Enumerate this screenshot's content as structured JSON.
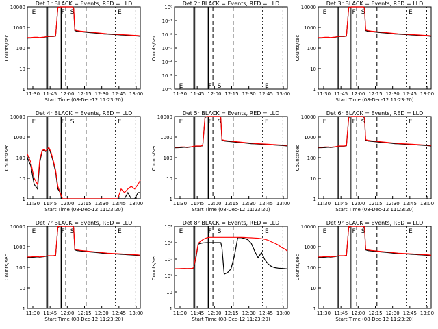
{
  "chart_data": [
    {
      "type": "line",
      "title": "Det 1r BLACK = Events, RED = LLD",
      "xlabel": "Start Time (08-Dec-12 11:23:20)",
      "ylabel": "Counts/sec",
      "yscale": "log",
      "ylim": [
        1,
        10000
      ],
      "ytick_labels": [
        "1",
        "10",
        "100",
        "1000",
        "10000"
      ],
      "x_tick_labels": [
        "11:30",
        "11:45",
        "12:00",
        "12:15",
        "12:30",
        "12:45",
        "13:00"
      ],
      "xlim": [
        0,
        100
      ],
      "markers": [
        "E",
        "F",
        "S",
        "E"
      ],
      "series": [
        {
          "name": "Events",
          "color": "#000000"
        },
        {
          "name": "LLD",
          "color": "#ff0000"
        }
      ],
      "profile": "flare"
    },
    {
      "type": "line",
      "title": "Det 2r BLACK = Events, RED = LLD",
      "xlabel": "",
      "ylabel": "Counts/sec",
      "yscale": "log",
      "ylim": [
        1,
        1e-06
      ],
      "ytick_labels": [
        "10⁻⁶",
        "10⁻⁵",
        "10⁻⁴",
        "10⁻³",
        "10⁻²",
        "10⁻¹",
        "10⁰"
      ],
      "x_tick_labels": [
        "11:30",
        "11:45",
        "12:00",
        "12:15",
        "12:30",
        "12:45",
        "13:00"
      ],
      "xlim": [
        0,
        100
      ],
      "markers": [
        "E",
        "F",
        "S",
        "E"
      ],
      "series": [
        {
          "name": "Events",
          "color": "#000000"
        },
        {
          "name": "LLD",
          "color": "#ff0000"
        }
      ],
      "profile": "none"
    },
    {
      "type": "line",
      "title": "Det 3r BLACK = Events, RED = LLD",
      "xlabel": "Start Time (08-Dec-12 11:23:20)",
      "ylabel": "Counts/sec",
      "yscale": "log",
      "ylim": [
        1,
        10000
      ],
      "ytick_labels": [
        "1",
        "10",
        "100",
        "1000",
        "10000"
      ],
      "x_tick_labels": [
        "11:30",
        "11:45",
        "12:00",
        "12:15",
        "12:30",
        "12:45",
        "13:00"
      ],
      "xlim": [
        0,
        100
      ],
      "markers": [
        "E",
        "F",
        "S",
        "E"
      ],
      "series": [
        {
          "name": "Events",
          "color": "#000000"
        },
        {
          "name": "LLD",
          "color": "#ff0000"
        }
      ],
      "profile": "flare"
    },
    {
      "type": "line",
      "title": "Det 4r BLACK = Events, RED = LLD",
      "xlabel": "Start Time (08-Dec-12 11:23:20)",
      "ylabel": "Counts/sec",
      "yscale": "log",
      "ylim": [
        1,
        10000
      ],
      "ytick_labels": [
        "1",
        "10",
        "100",
        "1000",
        "10000"
      ],
      "x_tick_labels": [
        "11:30",
        "11:45",
        "12:00",
        "12:15",
        "12:30",
        "12:45",
        "13:00"
      ],
      "xlim": [
        0,
        100
      ],
      "markers": [
        "E",
        "F",
        "S",
        "E"
      ],
      "series": [
        {
          "name": "Events",
          "color": "#000000"
        },
        {
          "name": "LLD",
          "color": "#ff0000"
        }
      ],
      "profile": "noisy"
    },
    {
      "type": "line",
      "title": "Det 5r BLACK = Events, RED = LLD",
      "xlabel": "Start Time (08-Dec-12 11:23:20)",
      "ylabel": "Counts/sec",
      "yscale": "log",
      "ylim": [
        1,
        10000
      ],
      "ytick_labels": [
        "1",
        "10",
        "100",
        "1000",
        "10000"
      ],
      "x_tick_labels": [
        "11:30",
        "11:45",
        "12:00",
        "12:15",
        "12:30",
        "12:45",
        "13:00"
      ],
      "xlim": [
        0,
        100
      ],
      "markers": [
        "E",
        "F",
        "S",
        "E"
      ],
      "series": [
        {
          "name": "Events",
          "color": "#000000"
        },
        {
          "name": "LLD",
          "color": "#ff0000"
        }
      ],
      "profile": "flare"
    },
    {
      "type": "line",
      "title": "Det 6r BLACK = Events, RED = LLD",
      "xlabel": "Start Time (08-Dec-12 11:23:20)",
      "ylabel": "Counts/sec",
      "yscale": "log",
      "ylim": [
        1,
        10000
      ],
      "ytick_labels": [
        "1",
        "10",
        "100",
        "1000",
        "10000"
      ],
      "x_tick_labels": [
        "11:30",
        "11:45",
        "12:00",
        "12:15",
        "12:30",
        "12:45",
        "13:00"
      ],
      "xlim": [
        0,
        100
      ],
      "markers": [
        "E",
        "F",
        "S",
        "E"
      ],
      "series": [
        {
          "name": "Events",
          "color": "#000000"
        },
        {
          "name": "LLD",
          "color": "#ff0000"
        }
      ],
      "profile": "flare"
    },
    {
      "type": "line",
      "title": "Det 7r BLACK = Events, RED = LLD",
      "xlabel": "Start Time (08-Dec-12 11:23:20)",
      "ylabel": "Counts/sec",
      "yscale": "log",
      "ylim": [
        1,
        10000
      ],
      "ytick_labels": [
        "1",
        "10",
        "100",
        "1000",
        "10000"
      ],
      "x_tick_labels": [
        "11:30",
        "11:45",
        "12:00",
        "12:15",
        "12:30",
        "12:45",
        "13:00"
      ],
      "xlim": [
        0,
        100
      ],
      "markers": [
        "E",
        "F",
        "S",
        "E"
      ],
      "series": [
        {
          "name": "Events",
          "color": "#000000"
        },
        {
          "name": "LLD",
          "color": "#ff0000"
        }
      ],
      "profile": "flare"
    },
    {
      "type": "line",
      "title": "Det 8r BLACK = Events, RED = LLD",
      "xlabel": "Start Time (08-Dec-12 11:23:20)",
      "ylabel": "Counts/sec",
      "yscale": "log",
      "ylim": [
        1,
        100000
      ],
      "ytick_labels": [
        "1",
        "10",
        "10²",
        "10³",
        "10⁴",
        "10⁵"
      ],
      "x_tick_labels": [
        "11:30",
        "11:45",
        "12:00",
        "12:15",
        "12:30",
        "12:45",
        "13:00"
      ],
      "xlim": [
        0,
        100
      ],
      "markers": [
        "E",
        "F",
        "S",
        "E"
      ],
      "series": [
        {
          "name": "Events",
          "color": "#000000"
        },
        {
          "name": "LLD",
          "color": "#ff0000"
        }
      ],
      "profile": "det8"
    },
    {
      "type": "line",
      "title": "Det 9r BLACK = Events, RED = LLD",
      "xlabel": "Start Time (08-Dec-12 11:23:20)",
      "ylabel": "Counts/sec",
      "yscale": "log",
      "ylim": [
        1,
        10000
      ],
      "ytick_labels": [
        "1",
        "10",
        "100",
        "1000",
        "10000"
      ],
      "x_tick_labels": [
        "11:30",
        "11:45",
        "12:00",
        "12:15",
        "12:30",
        "12:45",
        "13:00"
      ],
      "xlim": [
        0,
        100
      ],
      "markers": [
        "E",
        "F",
        "S",
        "E"
      ],
      "series": [
        {
          "name": "Events",
          "color": "#000000"
        },
        {
          "name": "LLD",
          "color": "#ff0000"
        }
      ],
      "profile": "flare"
    }
  ],
  "shared": {
    "time_points": [
      0,
      3,
      6,
      9,
      11,
      13,
      15,
      16,
      17,
      19,
      21,
      23,
      25,
      27,
      29,
      31,
      33,
      35,
      37,
      38,
      39,
      40,
      41,
      42,
      44,
      47,
      50,
      53,
      56,
      59,
      62,
      65,
      68,
      71,
      74,
      77,
      80,
      83,
      86,
      89,
      92,
      95,
      98,
      100
    ],
    "flare_events": [
      300,
      305,
      310,
      320,
      310,
      320,
      330,
      340,
      350,
      360,
      360,
      360,
      380,
      9000,
      10000,
      10000,
      10000,
      10000,
      10000,
      10000,
      10000,
      10000,
      8000,
      700,
      650,
      620,
      600,
      580,
      560,
      540,
      520,
      500,
      480,
      470,
      460,
      450,
      440,
      430,
      420,
      410,
      400,
      390,
      380,
      370
    ],
    "flare_lld": [
      320,
      320,
      330,
      330,
      320,
      330,
      340,
      350,
      360,
      370,
      370,
      370,
      390,
      9500,
      10000,
      10000,
      10000,
      10000,
      10000,
      10000,
      10000,
      10000,
      9000,
      750,
      700,
      660,
      640,
      610,
      590,
      570,
      550,
      530,
      510,
      490,
      480,
      470,
      460,
      450,
      440,
      430,
      420,
      410,
      400,
      390
    ],
    "det8_events": [
      250,
      255,
      260,
      265,
      260,
      262,
      265,
      270,
      300,
      1200,
      8000,
      9000,
      9500,
      9800,
      10000,
      10000,
      10000,
      10000,
      10000,
      10000,
      10000,
      10000,
      10000,
      5000,
      120,
      150,
      250,
      1500,
      20000,
      20000,
      18000,
      15000,
      9000,
      3000,
      1200,
      2500,
      900,
      500,
      350,
      300,
      280,
      270,
      260,
      250
    ],
    "det8_lld": [
      260,
      262,
      265,
      268,
      265,
      268,
      270,
      275,
      320,
      1500,
      9000,
      12000,
      15000,
      18000,
      20000,
      21000,
      21000,
      21000,
      21000,
      21000,
      21000,
      21000,
      21000,
      21000,
      21000,
      21000,
      21000,
      21000,
      21000,
      21000,
      20500,
      20000,
      19500,
      19000,
      18500,
      17500,
      16000,
      14000,
      11000,
      9000,
      7000,
      5000,
      4000,
      3000
    ],
    "det4_events": [
      100,
      40,
      5,
      3,
      60,
      200,
      250,
      200,
      220,
      300,
      150,
      60,
      20,
      3,
      2,
      1,
      1,
      1,
      1,
      1,
      1,
      1,
      1,
      1,
      1,
      1,
      1,
      1,
      1,
      1,
      1,
      1,
      1,
      1,
      1,
      1,
      1,
      1,
      1,
      2,
      1,
      1,
      2,
      2
    ],
    "det4_lld": [
      150,
      60,
      10,
      5,
      80,
      220,
      260,
      210,
      230,
      320,
      180,
      70,
      25,
      4,
      2,
      1,
      1,
      1,
      1,
      1,
      1,
      1,
      1,
      1,
      1,
      1,
      1,
      1,
      1,
      1,
      1,
      1,
      1,
      1,
      1,
      1,
      1,
      3,
      2,
      3,
      4,
      3,
      5,
      8
    ]
  }
}
